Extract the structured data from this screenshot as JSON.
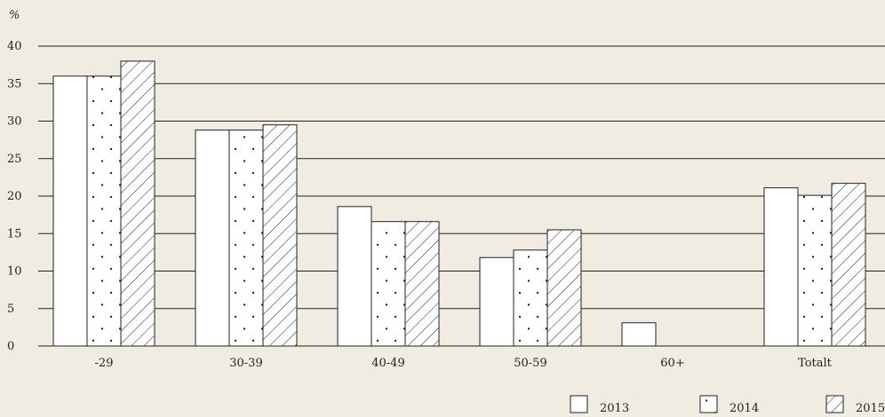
{
  "chart_data": {
    "type": "bar",
    "ylabel": "%",
    "ylim": [
      0,
      40
    ],
    "yticks": [
      0,
      5,
      10,
      15,
      20,
      25,
      30,
      35,
      40
    ],
    "grid": true,
    "legend_position": "bottom-right",
    "categories": [
      "-29",
      "30-39",
      "40-49",
      "50-59",
      "60+",
      "Totalt"
    ],
    "series": [
      {
        "name": "2013",
        "pattern": "solid",
        "values": [
          36.0,
          28.8,
          18.6,
          11.8,
          3.1,
          21.1
        ]
      },
      {
        "name": "2014",
        "pattern": "dots",
        "values": [
          36.0,
          28.8,
          16.6,
          12.8,
          0,
          20.1
        ]
      },
      {
        "name": "2015",
        "pattern": "hatch",
        "values": [
          38.0,
          29.5,
          16.6,
          15.5,
          0,
          21.7
        ]
      }
    ],
    "colors": {
      "background": "#f0ece2",
      "bar_fill": "#ffffff",
      "stroke": "#222222"
    }
  }
}
